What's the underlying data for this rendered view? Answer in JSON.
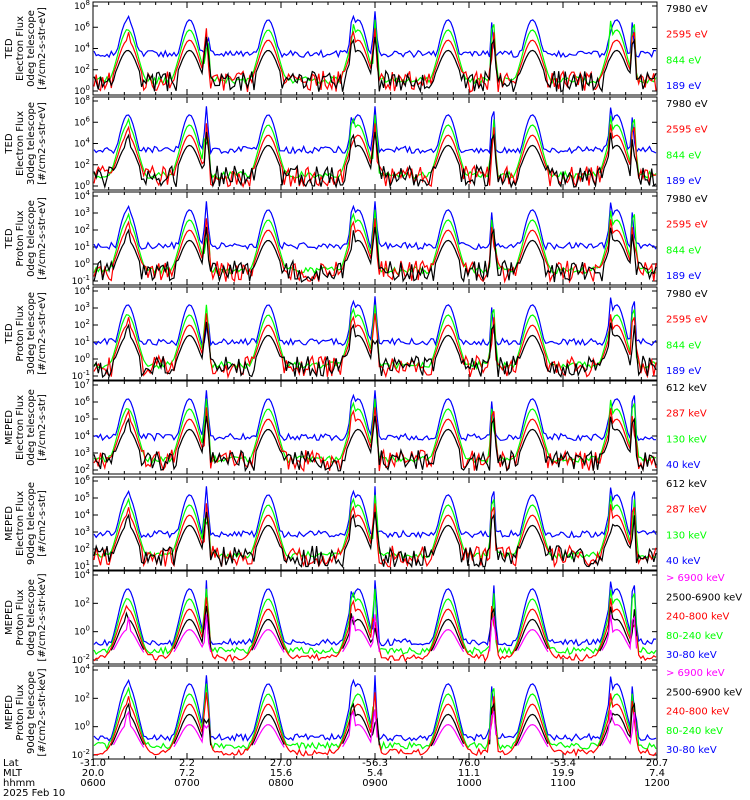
{
  "figure": {
    "footer": {
      "row_names": [
        "Lat",
        "MLT",
        "hhmm",
        "2025 Feb 10"
      ],
      "columns": [
        {
          "lat": "-31.0",
          "mlt": "20.0",
          "hhmm": "0600"
        },
        {
          "lat": "2.2",
          "mlt": "7.2",
          "hhmm": "0700"
        },
        {
          "lat": "27.0",
          "mlt": "15.6",
          "hhmm": "0800"
        },
        {
          "lat": "-56.3",
          "mlt": "5.4",
          "hhmm": "0900"
        },
        {
          "lat": "76.0",
          "mlt": "11.1",
          "hhmm": "1000"
        },
        {
          "lat": "-53.4",
          "mlt": "19.9",
          "hhmm": "1100"
        },
        {
          "lat": "20.7",
          "mlt": "7.4",
          "hhmm": "1200"
        }
      ]
    },
    "colors": {
      "blue": "#0000ff",
      "green": "#00ff00",
      "red": "#ff0000",
      "black": "#000000",
      "magenta": "#ff00ff"
    }
  },
  "chart_data": [
    {
      "type": "line",
      "instrument": "TED",
      "ylabel_lines": [
        "TED",
        "Electron Flux",
        "0deg telescope",
        "[#/cm2-s-str-eV]"
      ],
      "yscale": "log",
      "y_tick_labels": [
        "10^8",
        "10^6",
        "10^4",
        "10^2",
        "10^0"
      ],
      "legend_placement": "right",
      "series": [
        {
          "name": "7980 eV",
          "color": "#000000"
        },
        {
          "name": "2595 eV",
          "color": "#ff0000"
        },
        {
          "name": "844 eV",
          "color": "#00ff00"
        },
        {
          "name": "189 eV",
          "color": "#0000ff"
        }
      ]
    },
    {
      "type": "line",
      "instrument": "TED",
      "ylabel_lines": [
        "TED",
        "Electron Flux",
        "30deg telescope",
        "[#/cm2-s-str-eV]"
      ],
      "yscale": "log",
      "y_tick_labels": [
        "10^8",
        "10^6",
        "10^4",
        "10^2",
        "10^0"
      ],
      "legend_placement": "right",
      "series": [
        {
          "name": "7980 eV",
          "color": "#000000"
        },
        {
          "name": "2595 eV",
          "color": "#ff0000"
        },
        {
          "name": "844 eV",
          "color": "#00ff00"
        },
        {
          "name": "189 eV",
          "color": "#0000ff"
        }
      ]
    },
    {
      "type": "line",
      "instrument": "TED",
      "ylabel_lines": [
        "TED",
        "Proton Flux",
        "0deg telescope",
        "[#/cm2-s-str-eV]"
      ],
      "yscale": "log",
      "y_tick_labels": [
        "10^4",
        "10^3",
        "10^2",
        "10^1",
        "10^0",
        "10^-1"
      ],
      "legend_placement": "right",
      "series": [
        {
          "name": "7980 eV",
          "color": "#000000"
        },
        {
          "name": "2595 eV",
          "color": "#ff0000"
        },
        {
          "name": "844 eV",
          "color": "#00ff00"
        },
        {
          "name": "189 eV",
          "color": "#0000ff"
        }
      ]
    },
    {
      "type": "line",
      "instrument": "TED",
      "ylabel_lines": [
        "TED",
        "Proton Flux",
        "30deg telescope",
        "[#/cm2-s-str-eV]"
      ],
      "yscale": "log",
      "y_tick_labels": [
        "10^4",
        "10^3",
        "10^2",
        "10^1",
        "10^0",
        "10^-1"
      ],
      "legend_placement": "right",
      "series": [
        {
          "name": "7980 eV",
          "color": "#000000"
        },
        {
          "name": "2595 eV",
          "color": "#ff0000"
        },
        {
          "name": "844 eV",
          "color": "#00ff00"
        },
        {
          "name": "189 eV",
          "color": "#0000ff"
        }
      ]
    },
    {
      "type": "line",
      "instrument": "MEPED",
      "ylabel_lines": [
        "MEPED",
        "Electron Flux",
        "0deg telescope",
        "[#/cm2-s-str]"
      ],
      "yscale": "log",
      "y_tick_labels": [
        "10^7",
        "10^6",
        "10^5",
        "10^4",
        "10^3",
        "10^2"
      ],
      "legend_placement": "right",
      "series": [
        {
          "name": "612 keV",
          "color": "#000000"
        },
        {
          "name": "287 keV",
          "color": "#ff0000"
        },
        {
          "name": "130 keV",
          "color": "#00ff00"
        },
        {
          "name": "40 keV",
          "color": "#0000ff"
        }
      ]
    },
    {
      "type": "line",
      "instrument": "MEPED",
      "ylabel_lines": [
        "MEPED",
        "Electron Flux",
        "90deg telescope",
        "[#/cm2-s-str]"
      ],
      "yscale": "log",
      "y_tick_labels": [
        "10^6",
        "10^5",
        "10^4",
        "10^3",
        "10^2",
        "10^1"
      ],
      "legend_placement": "right",
      "series": [
        {
          "name": "612 keV",
          "color": "#000000"
        },
        {
          "name": "287 keV",
          "color": "#ff0000"
        },
        {
          "name": "130 keV",
          "color": "#00ff00"
        },
        {
          "name": "40 keV",
          "color": "#0000ff"
        }
      ]
    },
    {
      "type": "line",
      "instrument": "MEPED",
      "ylabel_lines": [
        "MEPED",
        "Proton Flux",
        "0deg telescope",
        "[#/cm2-s-str-keV]"
      ],
      "yscale": "log",
      "y_tick_labels": [
        "10^4",
        "10^2",
        "10^0",
        "10^-2"
      ],
      "legend_placement": "right",
      "series": [
        {
          "name": "> 6900 keV",
          "color": "#ff00ff"
        },
        {
          "name": "2500-6900 keV",
          "color": "#000000"
        },
        {
          "name": "240-800 keV",
          "color": "#ff0000"
        },
        {
          "name": "80-240 keV",
          "color": "#00ff00"
        },
        {
          "name": "30-80 keV",
          "color": "#0000ff"
        }
      ]
    },
    {
      "type": "line",
      "instrument": "MEPED",
      "ylabel_lines": [
        "MEPED",
        "Proton Flux",
        "90deg telescope",
        "[#/cm2-s-str-keV]"
      ],
      "yscale": "log",
      "y_tick_labels": [
        "10^4",
        "10^2",
        "10^0",
        "10^-2"
      ],
      "legend_placement": "right",
      "series": [
        {
          "name": "> 6900 keV",
          "color": "#ff00ff"
        },
        {
          "name": "2500-6900 keV",
          "color": "#000000"
        },
        {
          "name": "240-800 keV",
          "color": "#ff0000"
        },
        {
          "name": "80-240 keV",
          "color": "#00ff00"
        },
        {
          "name": "30-80 keV",
          "color": "#0000ff"
        }
      ]
    }
  ]
}
